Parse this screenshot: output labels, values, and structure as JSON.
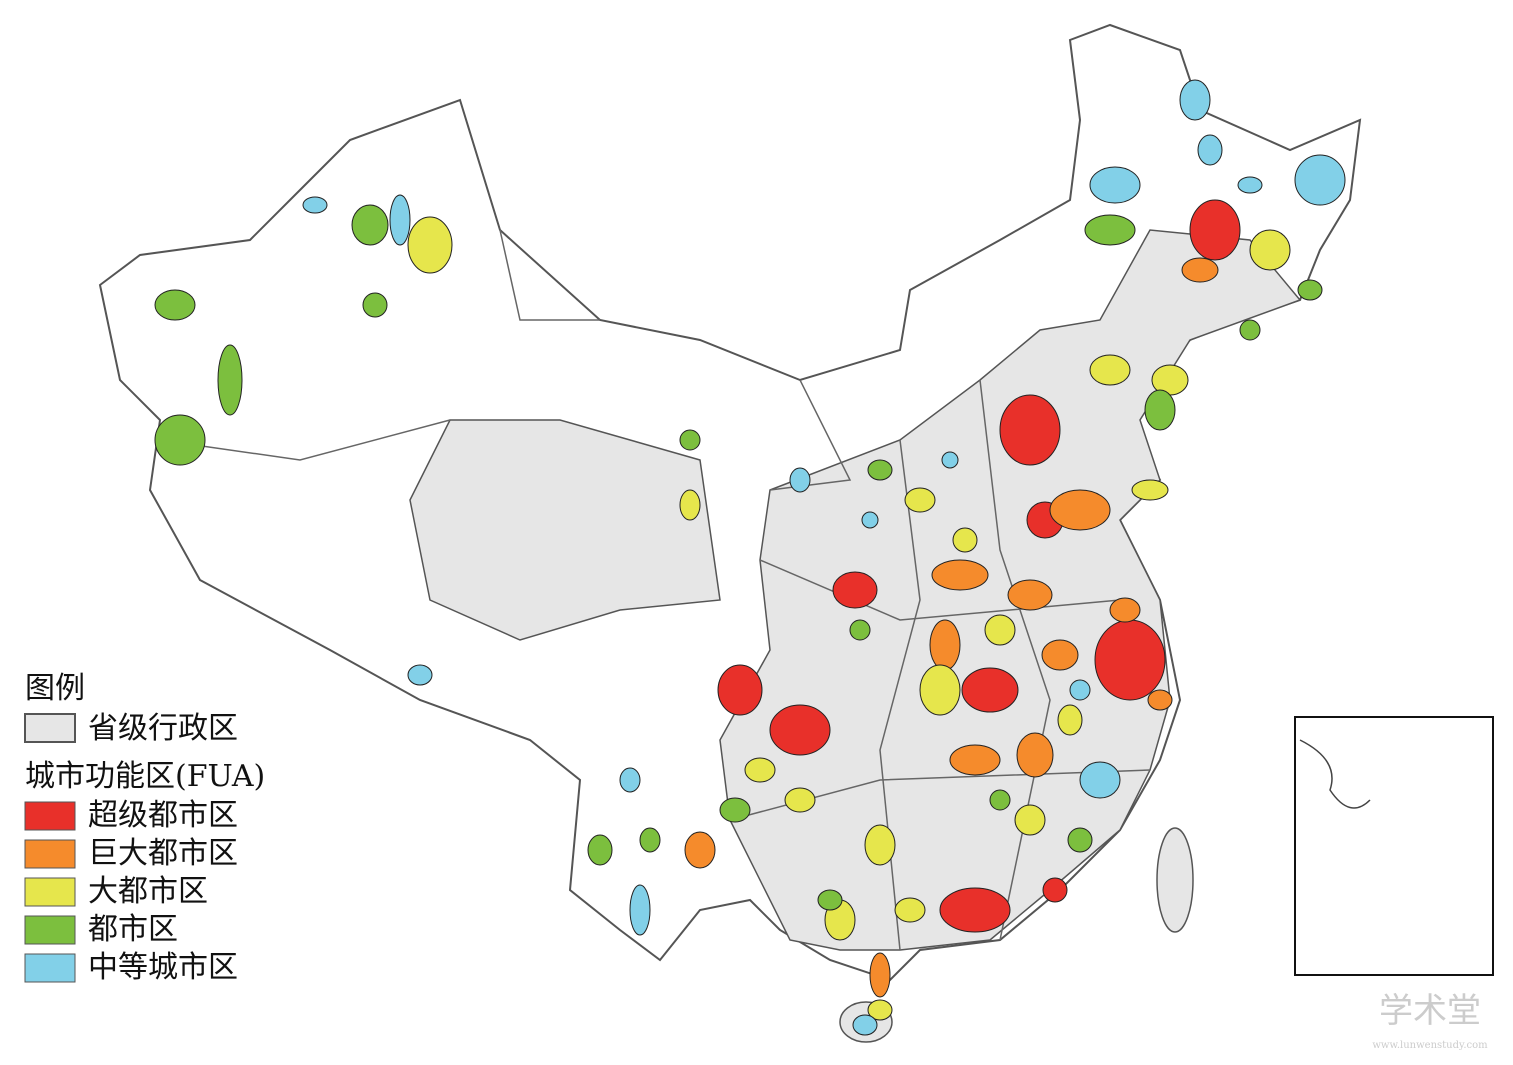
{
  "legend": {
    "title": "图例",
    "province": {
      "label": "省级行政区",
      "color": "#e6e6e6"
    },
    "fua_title": "城市功能区(FUA)",
    "items": [
      {
        "label": "超级都市区",
        "color": "#e8302a"
      },
      {
        "label": "巨大都市区",
        "color": "#f58b2c"
      },
      {
        "label": "大都市区",
        "color": "#e6e64c"
      },
      {
        "label": "都市区",
        "color": "#7cbf3e"
      },
      {
        "label": "中等城市区",
        "color": "#82d0e8"
      }
    ]
  },
  "watermark": {
    "title": "学术堂",
    "url": "www.lunwenstudy.com"
  }
}
